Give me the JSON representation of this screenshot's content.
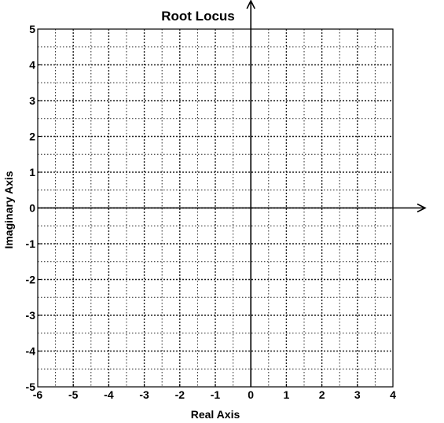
{
  "chart_data": {
    "type": "scatter",
    "title": "Root Locus",
    "xlabel": "Real Axis",
    "ylabel": "Imaginary Axis",
    "xlim": [
      -6,
      4
    ],
    "ylim": [
      -5,
      5
    ],
    "xticks": [
      -6,
      -5,
      -4,
      -3,
      -2,
      -1,
      0,
      1,
      2,
      3,
      4
    ],
    "yticks": [
      5,
      4,
      3,
      2,
      1,
      0,
      -1,
      -2,
      -3,
      -4,
      -5
    ],
    "minor_step": 0.5,
    "grid": true,
    "grid_style": "dotted",
    "axes_arrows": true,
    "series": []
  }
}
